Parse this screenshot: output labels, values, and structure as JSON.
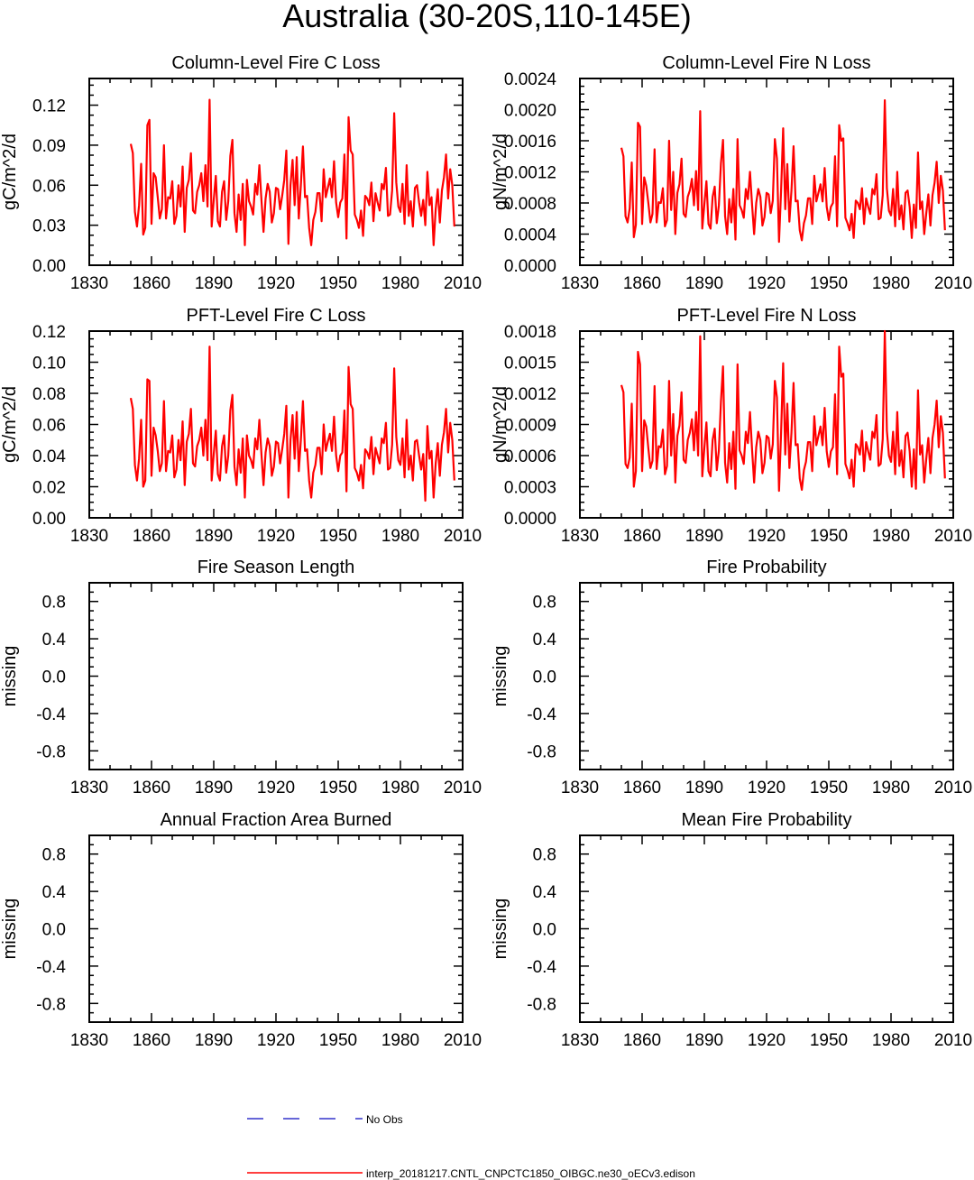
{
  "figure": {
    "title": "Australia (30-20S,110-145E)"
  },
  "legend": {
    "entries": [
      {
        "label": "No Obs",
        "color": "#3333cc",
        "style": "dashed"
      },
      {
        "label": "interp_20181217.CNTL_CNPCTC1850_OIBGC.ne30_oECv3.edison",
        "color": "#ff0000",
        "style": "solid"
      }
    ]
  },
  "chart_data": [
    {
      "type": "line",
      "title": "Column-Level Fire C Loss",
      "xlabel": "",
      "ylabel": "gC/m^2/d",
      "xlim": [
        1830,
        2010
      ],
      "ylim": [
        0,
        0.14
      ],
      "xticks": [
        "1830",
        "1860",
        "1890",
        "1920",
        "1950",
        "1980",
        "2010"
      ],
      "yticks": [
        "0.00",
        "0.03",
        "0.06",
        "0.09",
        "0.12"
      ],
      "series": [
        {
          "name": "interp_20181217.CNTL_CNPCTC1850_OIBGC.ne30_oECv3.edison",
          "color": "#ff0000",
          "x_start": 1850,
          "x_step": 1,
          "values": [
            0.091,
            0.084,
            0.04,
            0.029,
            0.045,
            0.076,
            0.023,
            0.028,
            0.105,
            0.109,
            0.031,
            0.069,
            0.066,
            0.051,
            0.035,
            0.042,
            0.09,
            0.035,
            0.051,
            0.05,
            0.063,
            0.031,
            0.037,
            0.06,
            0.044,
            0.074,
            0.025,
            0.058,
            0.064,
            0.084,
            0.041,
            0.039,
            0.055,
            0.06,
            0.069,
            0.048,
            0.075,
            0.044,
            0.124,
            0.029,
            0.049,
            0.067,
            0.033,
            0.029,
            0.055,
            0.063,
            0.034,
            0.048,
            0.082,
            0.094,
            0.039,
            0.025,
            0.053,
            0.034,
            0.061,
            0.015,
            0.064,
            0.048,
            0.044,
            0.038,
            0.061,
            0.053,
            0.075,
            0.049,
            0.025,
            0.05,
            0.061,
            0.055,
            0.032,
            0.039,
            0.058,
            0.057,
            0.042,
            0.052,
            0.064,
            0.086,
            0.016,
            0.06,
            0.079,
            0.045,
            0.081,
            0.035,
            0.06,
            0.089,
            0.051,
            0.052,
            0.028,
            0.015,
            0.034,
            0.04,
            0.054,
            0.054,
            0.033,
            0.072,
            0.051,
            0.058,
            0.065,
            0.051,
            0.078,
            0.047,
            0.036,
            0.047,
            0.05,
            0.083,
            0.02,
            0.111,
            0.086,
            0.083,
            0.038,
            0.034,
            0.028,
            0.041,
            0.022,
            0.052,
            0.05,
            0.045,
            0.062,
            0.033,
            0.054,
            0.047,
            0.041,
            0.061,
            0.057,
            0.073,
            0.037,
            0.038,
            0.056,
            0.114,
            0.062,
            0.044,
            0.04,
            0.061,
            0.031,
            0.075,
            0.037,
            0.048,
            0.029,
            0.058,
            0.06,
            0.047,
            0.037,
            0.049,
            0.03,
            0.07,
            0.045,
            0.051,
            0.015,
            0.042,
            0.057,
            0.032,
            0.056,
            0.066,
            0.083,
            0.05,
            0.072,
            0.06,
            0.029
          ]
        }
      ]
    },
    {
      "type": "line",
      "title": "Column-Level Fire N Loss",
      "xlabel": "",
      "ylabel": "gN/m^2/d",
      "xlim": [
        1830,
        2010
      ],
      "ylim": [
        0,
        0.0024
      ],
      "xticks": [
        "1830",
        "1860",
        "1890",
        "1920",
        "1950",
        "1980",
        "2010"
      ],
      "yticks": [
        "0.0000",
        "0.0004",
        "0.0008",
        "0.0012",
        "0.0016",
        "0.0020",
        "0.0024"
      ],
      "series": [
        {
          "name": "interp_20181217.CNTL_CNPCTC1850_OIBGC.ne30_oECv3.edison",
          "color": "#ff0000",
          "x_start": 1850,
          "x_step": 1,
          "values": [
            0.00151,
            0.0014,
            0.00063,
            0.00055,
            0.00073,
            0.00132,
            0.00036,
            0.00052,
            0.00183,
            0.00178,
            0.00053,
            0.00113,
            0.00102,
            0.0008,
            0.00055,
            0.00066,
            0.00149,
            0.00055,
            0.00081,
            0.0008,
            0.00099,
            0.0005,
            0.00058,
            0.0016,
            0.00071,
            0.0012,
            0.0004,
            0.00093,
            0.00104,
            0.00137,
            0.00066,
            0.00062,
            0.00088,
            0.00096,
            0.00111,
            0.00077,
            0.00121,
            0.00071,
            0.00198,
            0.00047,
            0.00078,
            0.00108,
            0.00053,
            0.00047,
            0.00088,
            0.00101,
            0.00054,
            0.00077,
            0.00131,
            0.00161,
            0.00063,
            0.0004,
            0.00085,
            0.00055,
            0.00098,
            0.00033,
            0.00162,
            0.00077,
            0.00071,
            0.00061,
            0.00098,
            0.00085,
            0.0012,
            0.00078,
            0.0004,
            0.0008,
            0.00098,
            0.00088,
            0.00051,
            0.00062,
            0.00093,
            0.00091,
            0.00067,
            0.00083,
            0.00162,
            0.00137,
            0.0003,
            0.00096,
            0.00176,
            0.00072,
            0.0013,
            0.00056,
            0.00096,
            0.00153,
            0.00082,
            0.00083,
            0.00045,
            0.00032,
            0.00054,
            0.00064,
            0.00086,
            0.00086,
            0.00053,
            0.00115,
            0.00082,
            0.00093,
            0.00104,
            0.00082,
            0.00125,
            0.00075,
            0.00058,
            0.00075,
            0.0008,
            0.0014,
            0.0005,
            0.0018,
            0.0016,
            0.00163,
            0.00061,
            0.00054,
            0.00045,
            0.00066,
            0.00035,
            0.00083,
            0.0008,
            0.00072,
            0.00099,
            0.00053,
            0.00086,
            0.00075,
            0.00066,
            0.00098,
            0.00091,
            0.00117,
            0.00059,
            0.00061,
            0.0009,
            0.00212,
            0.00099,
            0.0007,
            0.00064,
            0.00098,
            0.0005,
            0.0012,
            0.00059,
            0.00077,
            0.00046,
            0.00093,
            0.00096,
            0.00075,
            0.00035,
            0.00078,
            0.00048,
            0.00145,
            0.00072,
            0.00082,
            0.0004,
            0.00067,
            0.00091,
            0.00051,
            0.0009,
            0.00106,
            0.00133,
            0.0008,
            0.00115,
            0.00096,
            0.00045
          ]
        }
      ]
    },
    {
      "type": "line",
      "title": "PFT-Level Fire C Loss",
      "xlabel": "",
      "ylabel": "gC/m^2/d",
      "xlim": [
        1830,
        2010
      ],
      "ylim": [
        0,
        0.12
      ],
      "xticks": [
        "1830",
        "1860",
        "1890",
        "1920",
        "1950",
        "1980",
        "2010"
      ],
      "yticks": [
        "0.00",
        "0.02",
        "0.04",
        "0.06",
        "0.08",
        "0.10",
        "0.12"
      ],
      "series": [
        {
          "name": "interp_20181217.CNTL_CNPCTC1850_OIBGC.ne30_oECv3.edison",
          "color": "#ff0000",
          "x_start": 1850,
          "x_step": 1,
          "values": [
            0.077,
            0.07,
            0.034,
            0.024,
            0.038,
            0.063,
            0.02,
            0.024,
            0.089,
            0.088,
            0.027,
            0.058,
            0.053,
            0.043,
            0.03,
            0.035,
            0.075,
            0.03,
            0.043,
            0.042,
            0.053,
            0.026,
            0.031,
            0.05,
            0.037,
            0.062,
            0.021,
            0.049,
            0.054,
            0.07,
            0.035,
            0.033,
            0.046,
            0.05,
            0.058,
            0.04,
            0.063,
            0.037,
            0.11,
            0.024,
            0.041,
            0.056,
            0.028,
            0.024,
            0.046,
            0.053,
            0.029,
            0.04,
            0.069,
            0.079,
            0.033,
            0.021,
            0.044,
            0.029,
            0.051,
            0.013,
            0.053,
            0.04,
            0.037,
            0.032,
            0.051,
            0.044,
            0.063,
            0.041,
            0.021,
            0.042,
            0.051,
            0.046,
            0.027,
            0.033,
            0.049,
            0.048,
            0.035,
            0.044,
            0.054,
            0.072,
            0.013,
            0.05,
            0.066,
            0.038,
            0.068,
            0.03,
            0.05,
            0.075,
            0.043,
            0.044,
            0.024,
            0.013,
            0.029,
            0.034,
            0.045,
            0.045,
            0.028,
            0.06,
            0.043,
            0.049,
            0.054,
            0.043,
            0.065,
            0.04,
            0.03,
            0.04,
            0.042,
            0.069,
            0.017,
            0.097,
            0.073,
            0.07,
            0.032,
            0.029,
            0.024,
            0.034,
            0.019,
            0.044,
            0.042,
            0.038,
            0.052,
            0.028,
            0.045,
            0.04,
            0.035,
            0.051,
            0.048,
            0.061,
            0.031,
            0.032,
            0.047,
            0.096,
            0.052,
            0.037,
            0.034,
            0.051,
            0.026,
            0.063,
            0.031,
            0.04,
            0.024,
            0.049,
            0.05,
            0.04,
            0.031,
            0.041,
            0.011,
            0.059,
            0.038,
            0.043,
            0.013,
            0.035,
            0.048,
            0.027,
            0.047,
            0.055,
            0.07,
            0.042,
            0.061,
            0.05,
            0.024
          ]
        }
      ]
    },
    {
      "type": "line",
      "title": "PFT-Level Fire N Loss",
      "xlabel": "",
      "ylabel": "gN/m^2/d",
      "xlim": [
        1830,
        2010
      ],
      "ylim": [
        0,
        0.0018
      ],
      "xticks": [
        "1830",
        "1860",
        "1890",
        "1920",
        "1950",
        "1980",
        "2010"
      ],
      "yticks": [
        "0.0000",
        "0.0003",
        "0.0006",
        "0.0009",
        "0.0012",
        "0.0015",
        "0.0018"
      ],
      "series": [
        {
          "name": "interp_20181217.CNTL_CNPCTC1850_OIBGC.ne30_oECv3.edison",
          "color": "#ff0000",
          "x_start": 1850,
          "x_step": 1,
          "values": [
            0.00128,
            0.00121,
            0.00052,
            0.00048,
            0.00058,
            0.0011,
            0.0003,
            0.00045,
            0.0016,
            0.00148,
            0.00045,
            0.00094,
            0.00088,
            0.00067,
            0.00048,
            0.00055,
            0.00127,
            0.00047,
            0.00069,
            0.00068,
            0.00085,
            0.00042,
            0.0005,
            0.00132,
            0.0006,
            0.001,
            0.00034,
            0.00079,
            0.00089,
            0.00121,
            0.00056,
            0.00053,
            0.00075,
            0.00082,
            0.00095,
            0.00065,
            0.00102,
            0.0006,
            0.00175,
            0.0004,
            0.00067,
            0.00092,
            0.00045,
            0.0004,
            0.00075,
            0.00086,
            0.00046,
            0.00065,
            0.00112,
            0.00146,
            0.00053,
            0.00034,
            0.00072,
            0.00047,
            0.00083,
            0.00028,
            0.00148,
            0.00065,
            0.0006,
            0.00052,
            0.00083,
            0.00072,
            0.00102,
            0.00066,
            0.00034,
            0.00068,
            0.00083,
            0.00075,
            0.00043,
            0.00053,
            0.00079,
            0.00077,
            0.00057,
            0.00071,
            0.00132,
            0.00116,
            0.00026,
            0.00082,
            0.00149,
            0.00061,
            0.0011,
            0.00048,
            0.00082,
            0.0013,
            0.0007,
            0.00071,
            0.00038,
            0.00027,
            0.00046,
            0.00054,
            0.00073,
            0.00073,
            0.00045,
            0.00098,
            0.0007,
            0.00079,
            0.00088,
            0.0007,
            0.00106,
            0.00064,
            0.00049,
            0.00064,
            0.00068,
            0.00119,
            0.00042,
            0.00165,
            0.00136,
            0.00139,
            0.00052,
            0.00046,
            0.00038,
            0.00056,
            0.0003,
            0.00071,
            0.00068,
            0.00061,
            0.00084,
            0.00045,
            0.00073,
            0.00064,
            0.00056,
            0.00083,
            0.00077,
            0.00099,
            0.0005,
            0.00052,
            0.00076,
            0.0018,
            0.00084,
            0.0006,
            0.00054,
            0.00083,
            0.00042,
            0.00102,
            0.0005,
            0.00065,
            0.00039,
            0.00079,
            0.00082,
            0.00064,
            0.0003,
            0.00066,
            0.00028,
            0.00123,
            0.00061,
            0.0007,
            0.00034,
            0.00057,
            0.00077,
            0.00043,
            0.00077,
            0.0009,
            0.00113,
            0.00068,
            0.00098,
            0.00082,
            0.00038
          ]
        }
      ]
    },
    {
      "type": "line",
      "title": "Fire Season Length",
      "xlabel": "",
      "ylabel": "missing",
      "xlim": [
        1830,
        2010
      ],
      "ylim": [
        -1,
        1
      ],
      "xticks": [
        "1830",
        "1860",
        "1890",
        "1920",
        "1950",
        "1980",
        "2010"
      ],
      "yticks": [
        "-0.8",
        "-0.4",
        "0.0",
        "0.4",
        "0.8"
      ],
      "series": []
    },
    {
      "type": "line",
      "title": "Fire Probability",
      "xlabel": "",
      "ylabel": "missing",
      "xlim": [
        1830,
        2010
      ],
      "ylim": [
        -1,
        1
      ],
      "xticks": [
        "1830",
        "1860",
        "1890",
        "1920",
        "1950",
        "1980",
        "2010"
      ],
      "yticks": [
        "-0.8",
        "-0.4",
        "0.0",
        "0.4",
        "0.8"
      ],
      "series": []
    },
    {
      "type": "line",
      "title": "Annual Fraction Area Burned",
      "xlabel": "",
      "ylabel": "missing",
      "xlim": [
        1830,
        2010
      ],
      "ylim": [
        -1,
        1
      ],
      "xticks": [
        "1830",
        "1860",
        "1890",
        "1920",
        "1950",
        "1980",
        "2010"
      ],
      "yticks": [
        "-0.8",
        "-0.4",
        "0.0",
        "0.4",
        "0.8"
      ],
      "series": []
    },
    {
      "type": "line",
      "title": "Mean Fire Probability",
      "xlabel": "",
      "ylabel": "missing",
      "xlim": [
        1830,
        2010
      ],
      "ylim": [
        -1,
        1
      ],
      "xticks": [
        "1830",
        "1860",
        "1890",
        "1920",
        "1950",
        "1980",
        "2010"
      ],
      "yticks": [
        "-0.8",
        "-0.4",
        "0.0",
        "0.4",
        "0.8"
      ],
      "series": []
    }
  ]
}
